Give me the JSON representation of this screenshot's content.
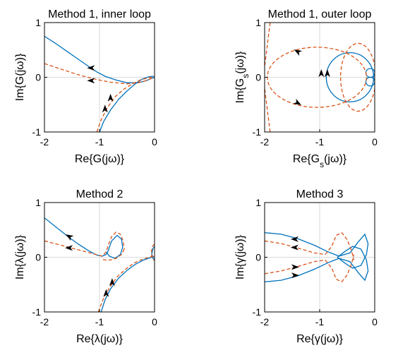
{
  "colors": {
    "solid": "#0072BD",
    "dashed": "#D95319",
    "grid": "#d9d9d9"
  },
  "chart_data": [
    {
      "type": "line",
      "title": "Method 1, inner loop",
      "xlabel": "Re{G(jω)}",
      "ylabel": "Im{G(jω)}",
      "xlim": [
        -2,
        0
      ],
      "ylim": [
        -1,
        1
      ],
      "xticks": [
        "-2",
        "-1",
        "0"
      ],
      "yticks": [
        "-1",
        "0",
        "1"
      ],
      "grid": true,
      "series": [
        {
          "style": "solid",
          "x": [
            -2,
            -1.8,
            -1.6,
            -1.4,
            -1.2,
            -1.05,
            -0.9,
            -0.7,
            -0.5,
            -0.3,
            -0.15,
            -0.05,
            0
          ],
          "y": [
            0.75,
            0.62,
            0.48,
            0.34,
            0.2,
            0.1,
            0.02,
            -0.05,
            -0.1,
            -0.1,
            -0.06,
            -0.02,
            0
          ]
        },
        {
          "style": "solid",
          "x": [
            -1.0,
            -0.92,
            -0.8,
            -0.65,
            -0.5,
            -0.35,
            -0.22,
            -0.1,
            -0.03,
            0
          ],
          "y": [
            -1.0,
            -0.8,
            -0.6,
            -0.4,
            -0.25,
            -0.12,
            -0.03,
            0.01,
            0.02,
            0
          ]
        },
        {
          "style": "dashed",
          "x": [
            -2,
            -1.7,
            -1.4,
            -1.1,
            -0.8,
            -0.5,
            -0.3,
            -0.15,
            -0.05,
            0
          ],
          "y": [
            0.25,
            0.15,
            0.05,
            -0.03,
            -0.09,
            -0.12,
            -0.1,
            -0.06,
            -0.02,
            0
          ]
        },
        {
          "style": "dashed",
          "x": [
            -1.05,
            -0.97,
            -0.86,
            -0.72,
            -0.56,
            -0.4,
            -0.26,
            -0.12,
            -0.04,
            0
          ],
          "y": [
            -1.0,
            -0.78,
            -0.56,
            -0.36,
            -0.22,
            -0.12,
            -0.05,
            -0.01,
            0.0,
            0
          ]
        }
      ],
      "arrows": [
        {
          "x": -1.15,
          "y": 0.17,
          "dir": "left"
        },
        {
          "x": -1.15,
          "y": -0.06,
          "dir": "left"
        },
        {
          "x": -0.9,
          "y": -0.58,
          "dir": "up"
        },
        {
          "x": -0.8,
          "y": -0.38,
          "dir": "up"
        }
      ]
    },
    {
      "type": "line",
      "title": "Method 1, outer loop",
      "xlabel": "Re{Gs(jω)}",
      "ylabel": "Im{Gs(jω)}",
      "xlim": [
        -2,
        0
      ],
      "ylim": [
        -1,
        1
      ],
      "xticks": [
        "-2",
        "-1",
        "0"
      ],
      "yticks": [
        "-1",
        "0",
        "1"
      ],
      "grid": true,
      "series": [
        {
          "style": "solid",
          "shape": "ellipse",
          "cx": -0.45,
          "cy": 0,
          "rx": 0.43,
          "ry": 0.45
        },
        {
          "style": "solid",
          "shape": "ellipse",
          "cx": -0.08,
          "cy": 0.08,
          "rx": 0.08,
          "ry": 0.08
        },
        {
          "style": "solid",
          "shape": "ellipse",
          "cx": -0.08,
          "cy": -0.08,
          "rx": 0.08,
          "ry": 0.08
        },
        {
          "style": "dashed",
          "shape": "ellipse",
          "cx": -1.05,
          "cy": 0,
          "rx": 0.9,
          "ry": 0.55
        },
        {
          "style": "dashed",
          "shape": "ellipse",
          "cx": -0.3,
          "cy": 0,
          "rx": 0.32,
          "ry": 0.62
        },
        {
          "style": "dashed",
          "x": [
            -1.9,
            -1.95,
            -2.0
          ],
          "y": [
            1.0,
            0.6,
            0.2
          ]
        },
        {
          "style": "dashed",
          "x": [
            -1.9,
            -1.95,
            -2.0
          ],
          "y": [
            -1.0,
            -0.6,
            -0.2
          ]
        }
      ],
      "arrows": [
        {
          "x": -1.4,
          "y": 0.47,
          "dir": "upleft"
        },
        {
          "x": -1.4,
          "y": -0.47,
          "dir": "downright"
        },
        {
          "x": -0.97,
          "y": 0.07,
          "dir": "up"
        },
        {
          "x": -0.86,
          "y": 0.07,
          "dir": "up"
        }
      ]
    },
    {
      "type": "line",
      "title": "Method 2",
      "xlabel": "Re{λ(jω)}",
      "ylabel": "Im{λ(jω)}",
      "xlim": [
        -2,
        0
      ],
      "ylim": [
        -1,
        1
      ],
      "xticks": [
        "-2",
        "-1",
        "0"
      ],
      "yticks": [
        "-1",
        "0",
        "1"
      ],
      "grid": true,
      "series": [
        {
          "style": "solid",
          "x": [
            -2,
            -1.8,
            -1.6,
            -1.4,
            -1.2,
            -1.05,
            -0.95,
            -0.88,
            -0.85,
            -0.78,
            -0.68,
            -0.6,
            -0.58,
            -0.62,
            -0.72,
            -0.82,
            -0.88
          ],
          "y": [
            0.72,
            0.56,
            0.4,
            0.25,
            0.12,
            0.04,
            0.02,
            0.05,
            0.1,
            0.3,
            0.4,
            0.33,
            0.18,
            0.05,
            -0.02,
            0.02,
            0.1
          ]
        },
        {
          "style": "solid",
          "x": [
            -0.97,
            -0.9,
            -0.8,
            -0.65,
            -0.5,
            -0.35,
            -0.2,
            -0.08,
            -0.02,
            0
          ],
          "y": [
            -1.0,
            -0.78,
            -0.58,
            -0.38,
            -0.24,
            -0.13,
            -0.05,
            -0.01,
            0.01,
            0
          ]
        },
        {
          "style": "solid",
          "x": [
            0,
            -0.03,
            -0.05,
            -0.03,
            0
          ],
          "y": [
            0.2,
            0.16,
            0.06,
            -0.02,
            -0.04
          ]
        },
        {
          "style": "dashed",
          "x": [
            -2,
            -1.7,
            -1.4,
            -1.1,
            -0.95,
            -0.88,
            -0.84,
            -0.78,
            -0.7,
            -0.62,
            -0.57,
            -0.55
          ],
          "y": [
            0.3,
            0.22,
            0.14,
            0.06,
            0.02,
            0.1,
            0.22,
            0.38,
            0.46,
            0.42,
            0.3,
            0.15
          ]
        },
        {
          "style": "dashed",
          "x": [
            -0.55,
            -0.6,
            -0.7,
            -0.8,
            -0.9,
            -0.97
          ],
          "y": [
            0.15,
            0.05,
            -0.02,
            -0.05,
            -0.05,
            -0.03
          ]
        },
        {
          "style": "dashed",
          "x": [
            -1.02,
            -0.94,
            -0.82,
            -0.68,
            -0.53,
            -0.38,
            -0.23,
            -0.1,
            -0.03,
            0
          ],
          "y": [
            -1.0,
            -0.78,
            -0.56,
            -0.36,
            -0.22,
            -0.11,
            -0.04,
            0.0,
            0.02,
            0
          ]
        },
        {
          "style": "dashed",
          "x": [
            0,
            -0.04,
            -0.06,
            -0.04,
            0
          ],
          "y": [
            0.24,
            0.2,
            0.08,
            -0.03,
            -0.06
          ]
        }
      ],
      "arrows": [
        {
          "x": -1.55,
          "y": 0.38,
          "dir": "upleft"
        },
        {
          "x": -1.55,
          "y": 0.17,
          "dir": "left"
        },
        {
          "x": -0.88,
          "y": -0.66,
          "dir": "up"
        },
        {
          "x": -0.77,
          "y": -0.46,
          "dir": "up"
        }
      ]
    },
    {
      "type": "line",
      "title": "Method 3",
      "xlabel": "Re{γ(jω)}",
      "ylabel": "Im{γ(jω)}",
      "xlim": [
        -2,
        0
      ],
      "ylim": [
        -1,
        1
      ],
      "xticks": [
        "-2",
        "-1",
        "0"
      ],
      "yticks": [
        "-1",
        "0",
        "1"
      ],
      "grid": true,
      "series": [
        {
          "style": "solid",
          "x": [
            -2,
            -1.7,
            -1.4,
            -1.1,
            -0.85,
            -0.65,
            -0.45,
            -0.3,
            -0.18,
            -0.12,
            -0.15,
            -0.25,
            -0.4,
            -0.55,
            -0.68
          ],
          "y": [
            0.45,
            0.42,
            0.34,
            0.22,
            0.1,
            0.02,
            0.08,
            0.28,
            0.42,
            0.25,
            0.05,
            -0.15,
            -0.2,
            -0.1,
            0.0
          ]
        },
        {
          "style": "solid",
          "x": [
            -2,
            -1.7,
            -1.4,
            -1.1,
            -0.85,
            -0.65,
            -0.45,
            -0.3,
            -0.18,
            -0.12,
            -0.15,
            -0.25,
            -0.4,
            -0.55,
            -0.68
          ],
          "y": [
            -0.45,
            -0.42,
            -0.34,
            -0.22,
            -0.1,
            -0.02,
            -0.08,
            -0.28,
            -0.42,
            -0.25,
            -0.05,
            0.15,
            0.2,
            0.1,
            0.0
          ]
        },
        {
          "style": "dashed",
          "x": [
            -2,
            -1.7,
            -1.4,
            -1.1,
            -0.9,
            -0.78,
            -0.7,
            -0.6,
            -0.5,
            -0.42,
            -0.38
          ],
          "y": [
            0.3,
            0.25,
            0.17,
            0.08,
            0.05,
            0.2,
            0.4,
            0.45,
            0.32,
            0.12,
            -0.05
          ]
        },
        {
          "style": "dashed",
          "x": [
            -2,
            -1.7,
            -1.4,
            -1.1,
            -0.9,
            -0.78,
            -0.7,
            -0.6,
            -0.5,
            -0.42,
            -0.38
          ],
          "y": [
            -0.3,
            -0.25,
            -0.17,
            -0.08,
            -0.05,
            -0.2,
            -0.4,
            -0.45,
            -0.32,
            -0.12,
            0.05
          ]
        }
      ],
      "arrows": [
        {
          "x": -1.45,
          "y": 0.33,
          "dir": "left"
        },
        {
          "x": -1.45,
          "y": 0.18,
          "dir": "left"
        },
        {
          "x": -1.45,
          "y": -0.18,
          "dir": "right"
        },
        {
          "x": -1.45,
          "y": -0.33,
          "dir": "right"
        }
      ]
    }
  ]
}
